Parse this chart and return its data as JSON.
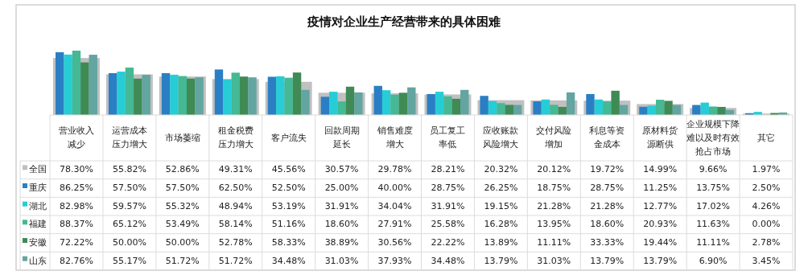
{
  "chart_data": {
    "type": "bar",
    "title": "疫情对企业生产经营带来的具体困难",
    "categories": [
      "营业收入减少",
      "运营成本压力增大",
      "市场萎缩",
      "租金税费压力增大",
      "客户流失",
      "回款周期延长",
      "销售难度增大",
      "员工复工率低",
      "应收账款风险增大",
      "交付风险增加",
      "利息等资金成本",
      "原材料货源断供",
      "企业规模下降难以及时有效抢占市场",
      "其它"
    ],
    "series": [
      {
        "name": "全国",
        "color": "#c0c0c0",
        "values": [
          78.3,
          55.82,
          52.86,
          49.31,
          45.56,
          30.57,
          29.78,
          28.21,
          20.32,
          20.12,
          19.72,
          14.99,
          9.66,
          1.97
        ],
        "value_labels": [
          "78.30%",
          "55.82%",
          "52.86%",
          "49.31%",
          "45.56%",
          "30.57%",
          "29.78%",
          "28.21%",
          "20.32%",
          "20.12%",
          "19.72%",
          "14.99%",
          "9.66%",
          "1.97%"
        ]
      },
      {
        "name": "重庆",
        "color": "#2a7fc4",
        "values": [
          86.25,
          57.5,
          57.5,
          62.5,
          52.5,
          25.0,
          40.0,
          28.75,
          26.25,
          18.75,
          28.75,
          11.25,
          13.75,
          2.5
        ],
        "value_labels": [
          "86.25%",
          "57.50%",
          "57.50%",
          "62.50%",
          "52.50%",
          "25.00%",
          "40.00%",
          "28.75%",
          "26.25%",
          "18.75%",
          "28.75%",
          "11.25%",
          "13.75%",
          "2.50%"
        ]
      },
      {
        "name": "湖北",
        "color": "#27cdd6",
        "values": [
          82.98,
          59.57,
          55.32,
          48.94,
          53.19,
          31.91,
          34.04,
          31.91,
          19.15,
          21.28,
          21.28,
          12.77,
          17.02,
          4.26
        ],
        "value_labels": [
          "82.98%",
          "59.57%",
          "55.32%",
          "48.94%",
          "53.19%",
          "31.91%",
          "34.04%",
          "31.91%",
          "19.15%",
          "21.28%",
          "21.28%",
          "12.77%",
          "17.02%",
          "4.26%"
        ]
      },
      {
        "name": "福建",
        "color": "#45b894",
        "values": [
          88.37,
          65.12,
          53.49,
          58.14,
          51.16,
          18.6,
          27.91,
          25.58,
          16.28,
          13.95,
          18.6,
          20.93,
          11.63,
          0.0
        ],
        "value_labels": [
          "88.37%",
          "65.12%",
          "53.49%",
          "58.14%",
          "51.16%",
          "18.60%",
          "27.91%",
          "25.58%",
          "16.28%",
          "13.95%",
          "18.60%",
          "20.93%",
          "11.63%",
          "0.00%"
        ]
      },
      {
        "name": "安徽",
        "color": "#3f8a55",
        "values": [
          72.22,
          50.0,
          50.0,
          52.78,
          58.33,
          38.89,
          30.56,
          22.22,
          13.89,
          11.11,
          33.33,
          19.44,
          11.11,
          2.78
        ],
        "value_labels": [
          "72.22%",
          "50.00%",
          "50.00%",
          "52.78%",
          "58.33%",
          "38.89%",
          "30.56%",
          "22.22%",
          "13.89%",
          "11.11%",
          "33.33%",
          "19.44%",
          "11.11%",
          "2.78%"
        ]
      },
      {
        "name": "山东",
        "color": "#63a5a0",
        "values": [
          82.76,
          55.17,
          51.72,
          51.72,
          34.48,
          31.03,
          37.93,
          34.48,
          13.79,
          31.03,
          13.79,
          13.79,
          6.9,
          3.45
        ],
        "value_labels": [
          "82.76%",
          "55.17%",
          "51.72%",
          "51.72%",
          "34.48%",
          "31.03%",
          "37.93%",
          "34.48%",
          "13.79%",
          "31.03%",
          "13.79%",
          "13.79%",
          "6.90%",
          "3.45%"
        ]
      }
    ],
    "legend": "left"
  }
}
